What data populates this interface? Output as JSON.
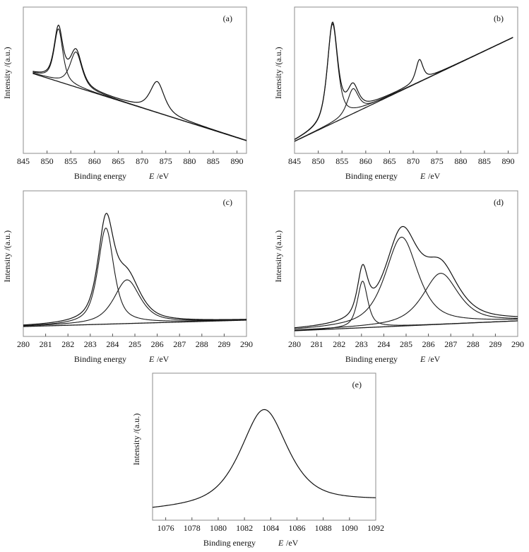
{
  "chart_data": [
    {
      "id": "a",
      "type": "line",
      "panel_label": "(a)",
      "title": "",
      "xlabel": "Binding energy",
      "xlabel_symbol": "E",
      "xlabel_unit": "/eV",
      "ylabel": "Intensity /(a.u.)",
      "xlim": [
        845,
        892
      ],
      "ylim": [
        0,
        100
      ],
      "x_ticks": [
        845,
        850,
        855,
        860,
        865,
        870,
        875,
        880,
        885,
        890
      ],
      "x_tick_labels": [
        "845",
        "850",
        "855",
        "860",
        "865",
        "870",
        "875",
        "880",
        "885",
        "890"
      ],
      "curve_x_range": [
        847,
        892
      ],
      "baseline": {
        "x": [
          847,
          892
        ],
        "y": [
          54.6,
          8.7
        ]
      },
      "components": [
        {
          "name": "peak-1",
          "center": 852.4,
          "height": 36,
          "fwhm": 2.2
        },
        {
          "name": "peak-2",
          "center": 856.1,
          "height": 24,
          "fwhm": 3.0
        },
        {
          "name": "peak-3",
          "center": 873.2,
          "height": 21,
          "fwhm": 3.6
        }
      ],
      "draw_components": [
        0,
        1
      ],
      "grid": false
    },
    {
      "id": "b",
      "type": "line",
      "panel_label": "(b)",
      "title": "",
      "xlabel": "Binding energy",
      "xlabel_symbol": "E",
      "xlabel_unit": "/eV",
      "ylabel": "Intensity /(a.u.)",
      "xlim": [
        845,
        892
      ],
      "ylim": [
        0,
        100
      ],
      "x_ticks": [
        845,
        850,
        855,
        860,
        865,
        870,
        875,
        880,
        885,
        890
      ],
      "x_tick_labels": [
        "845",
        "850",
        "855",
        "860",
        "865",
        "870",
        "875",
        "880",
        "885",
        "890"
      ],
      "curve_x_range": [
        845,
        891
      ],
      "baseline": {
        "x": [
          845,
          891
        ],
        "y": [
          8.2,
          79.2
        ]
      },
      "components": [
        {
          "name": "peak-1",
          "center": 853.0,
          "height": 68,
          "fwhm": 2.6
        },
        {
          "name": "peak-2",
          "center": 857.3,
          "height": 17,
          "fwhm": 2.8
        },
        {
          "name": "peak-3",
          "center": 871.3,
          "height": 15,
          "fwhm": 1.8
        }
      ],
      "draw_components": [
        0,
        1
      ],
      "grid": false
    },
    {
      "id": "c",
      "type": "line",
      "panel_label": "(c)",
      "title": "",
      "xlabel": "Binding energy",
      "xlabel_symbol": "E",
      "xlabel_unit": "/eV",
      "ylabel": "Intensity /(a.u.)",
      "xlim": [
        280,
        290
      ],
      "ylim": [
        0,
        100
      ],
      "x_ticks": [
        280,
        281,
        282,
        283,
        284,
        285,
        286,
        287,
        288,
        289,
        290
      ],
      "x_tick_labels": [
        "280",
        "281",
        "282",
        "283",
        "284",
        "285",
        "286",
        "287",
        "288",
        "289",
        "290"
      ],
      "curve_x_range": [
        280,
        290
      ],
      "baseline": {
        "x": [
          280,
          290
        ],
        "y": [
          6.8,
          11.2
        ]
      },
      "components": [
        {
          "name": "peak-1",
          "center": 283.7,
          "height": 66,
          "fwhm": 0.85
        },
        {
          "name": "peak-2",
          "center": 284.65,
          "height": 30,
          "fwhm": 1.4
        }
      ],
      "draw_components": [
        0,
        1
      ],
      "grid": false
    },
    {
      "id": "d",
      "type": "line",
      "panel_label": "(d)",
      "title": "",
      "xlabel": "Binding energy",
      "xlabel_symbol": "E",
      "xlabel_unit": "/eV",
      "ylabel": "Intensity /(a.u.)",
      "xlim": [
        280,
        290
      ],
      "ylim": [
        0,
        100
      ],
      "x_ticks": [
        280,
        281,
        282,
        283,
        284,
        285,
        286,
        287,
        288,
        289,
        290
      ],
      "x_tick_labels": [
        "280",
        "281",
        "282",
        "283",
        "284",
        "285",
        "286",
        "287",
        "288",
        "289",
        "290"
      ],
      "curve_x_range": [
        280,
        290
      ],
      "baseline": {
        "x": [
          280,
          290
        ],
        "y": [
          3.9,
          10.7
        ]
      },
      "components": [
        {
          "name": "peak-1",
          "center": 283.05,
          "height": 32,
          "fwhm": 0.55
        },
        {
          "name": "peak-2",
          "center": 284.8,
          "height": 61,
          "fwhm": 1.75
        },
        {
          "name": "peak-3",
          "center": 286.55,
          "height": 35,
          "fwhm": 1.9
        }
      ],
      "draw_components": [
        0,
        1,
        2
      ],
      "grid": false
    },
    {
      "id": "e",
      "type": "line",
      "panel_label": "(e)",
      "title": "",
      "xlabel": "Binding energy",
      "xlabel_symbol": "E",
      "xlabel_unit": "/eV",
      "ylabel": "Intensity /(a.u.)",
      "xlim": [
        1075,
        1092
      ],
      "ylim": [
        0,
        100
      ],
      "x_ticks": [
        1076,
        1078,
        1080,
        1082,
        1084,
        1086,
        1088,
        1090,
        1092
      ],
      "x_tick_labels": [
        "1076",
        "1078",
        "1080",
        "1082",
        "1084",
        "1086",
        "1088",
        "1090",
        "1092"
      ],
      "curve_x_range": [
        1075,
        1092
      ],
      "baseline": {
        "x": [
          1075,
          1092
        ],
        "y": [
          6.0,
          12.5
        ]
      },
      "components": [
        {
          "name": "peak-1",
          "center": 1083.5,
          "height": 66,
          "fwhm": 4.3
        }
      ],
      "draw_components": [],
      "draw_baseline": false,
      "grid": false
    }
  ]
}
